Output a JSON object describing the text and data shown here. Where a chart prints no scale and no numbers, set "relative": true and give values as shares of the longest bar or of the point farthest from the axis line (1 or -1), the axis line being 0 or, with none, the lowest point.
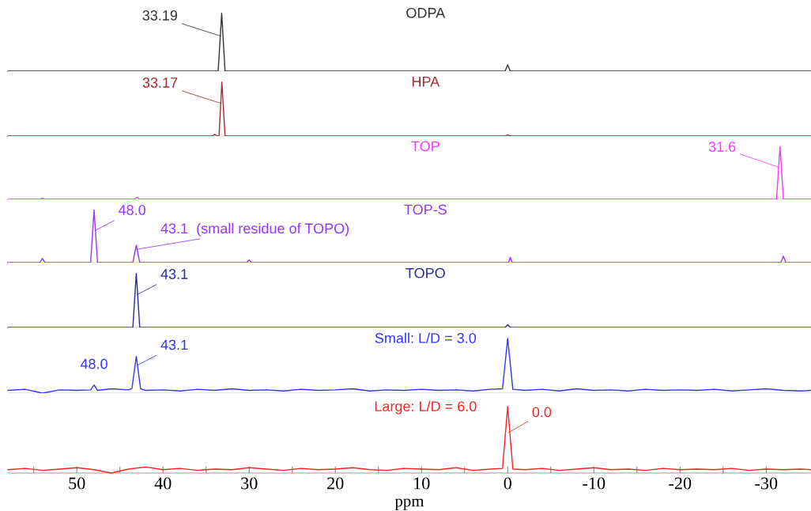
{
  "chart_data": [
    {
      "type": "line",
      "title": "ODPA",
      "relative": true,
      "xlim": [
        58,
        -35.2
      ],
      "tick_labels": false,
      "series": [
        {
          "color": "#333333",
          "x": [
            58,
            33.6,
            33.19,
            32.8,
            0.3,
            0,
            -0.3,
            -35.2
          ],
          "values": [
            0,
            0,
            1,
            0,
            0,
            0.11,
            0,
            0
          ]
        }
      ],
      "annotations": [
        {
          "text": "33.19",
          "x": 33.19,
          "y": 0.6
        }
      ]
    },
    {
      "type": "line",
      "title": "HPA",
      "relative": true,
      "xlim": [
        58,
        -35.2
      ],
      "tick_labels": false,
      "series": [
        {
          "color": "#a52a2a",
          "x": [
            58,
            34.3,
            34,
            33.7,
            33.5,
            33.17,
            32.8,
            0.3,
            0,
            -0.3,
            -35.2
          ],
          "values": [
            0,
            0,
            0.03,
            0,
            0,
            1,
            0,
            0,
            0.02,
            0,
            0
          ]
        }
      ],
      "annotations": [
        {
          "text": "33.17",
          "x": 33.17,
          "y": 0.6
        }
      ]
    },
    {
      "type": "line",
      "title": "TOP",
      "relative": true,
      "xlim": [
        58,
        -35.2
      ],
      "tick_labels": false,
      "series": [
        {
          "color": "#ff33ff",
          "x": [
            58,
            54.3,
            54,
            53.7,
            43.3,
            43,
            42.7,
            -31.2,
            -31.6,
            -32,
            -35.2
          ],
          "values": [
            0,
            0,
            0.02,
            0,
            0,
            0.04,
            0,
            0,
            1,
            0,
            0
          ]
        }
      ],
      "annotations": [
        {
          "text": "31.6",
          "x": -31.6,
          "y": 0.6
        }
      ]
    },
    {
      "type": "line",
      "title": "TOP-S",
      "relative": true,
      "xlim": [
        58,
        -35.2
      ],
      "tick_labels": false,
      "series": [
        {
          "color": "#9933ff",
          "x": [
            58,
            54.3,
            54,
            53.7,
            48.4,
            48.0,
            47.6,
            43.5,
            43.1,
            42.7,
            30.3,
            30,
            29.7,
            -0.1,
            -0.3,
            -0.5,
            -31.7,
            -32,
            -32.3,
            -35.2
          ],
          "values": [
            0,
            0,
            0.08,
            0,
            0,
            1,
            0,
            0,
            0.33,
            0,
            0,
            0.05,
            0,
            0,
            0.1,
            0,
            0,
            0.12,
            0,
            0
          ]
        }
      ],
      "annotations": [
        {
          "text": "48.0",
          "x": 48.0,
          "y": 0.6
        },
        {
          "text": "43.1  (small residue of TOPO)",
          "x": 43.1,
          "y": 0.25
        }
      ]
    },
    {
      "type": "line",
      "title": "TOPO",
      "relative": true,
      "xlim": [
        58,
        -35.2
      ],
      "tick_labels": false,
      "series": [
        {
          "color": "#2a2a99",
          "x": [
            58,
            43.5,
            43.1,
            42.7,
            0.3,
            0,
            -0.3,
            -35.2
          ],
          "values": [
            0,
            0,
            1,
            0,
            0,
            0.05,
            0,
            0
          ]
        }
      ],
      "annotations": [
        {
          "text": "43.1",
          "x": 43.1,
          "y": 0.6
        }
      ]
    },
    {
      "type": "line",
      "title": "Small: L/D = 3.0",
      "relative": true,
      "xlim": [
        58,
        -35.2
      ],
      "tick_labels": false,
      "series": [
        {
          "color": "#3333ff",
          "x": [
            58,
            56,
            54,
            52,
            50,
            48.4,
            48,
            47.6,
            46,
            44,
            43.6,
            43.1,
            42.6,
            42,
            40,
            38,
            36,
            34,
            32,
            30,
            28,
            26,
            24,
            22,
            20,
            18,
            16,
            14,
            12,
            10,
            8,
            6,
            4,
            2,
            0.6,
            0,
            -0.6,
            -2,
            -4,
            -6,
            -8,
            -10,
            -12,
            -14,
            -16,
            -18,
            -20,
            -22,
            -24,
            -26,
            -28,
            -30,
            -32,
            -34,
            -35.2
          ],
          "values": [
            0.05,
            0.07,
            0,
            0.06,
            0.05,
            0.06,
            0.15,
            0.05,
            0.08,
            0.06,
            0.09,
            0.67,
            0.08,
            0.05,
            0.06,
            0.04,
            0.07,
            0.05,
            0.08,
            0.05,
            0.06,
            0.04,
            0.07,
            0.05,
            0.06,
            0.08,
            0.04,
            0.06,
            0.05,
            0.07,
            0.05,
            0.06,
            0.04,
            0.07,
            0.08,
            1,
            0.07,
            0.05,
            0.07,
            0.04,
            0.08,
            0.05,
            0.06,
            0.04,
            0.07,
            0.05,
            0.06,
            0.05,
            0.07,
            0.04,
            0.06,
            0.08,
            0.05,
            0.04,
            0.05
          ]
        }
      ],
      "annotations": [
        {
          "text": "48.0",
          "x": 48.0,
          "y": 0.15
        },
        {
          "text": "43.1",
          "x": 43.1,
          "y": 0.5
        }
      ]
    },
    {
      "type": "line",
      "title": "Large: L/D = 6.0",
      "relative": true,
      "xlim": [
        58,
        -35.2
      ],
      "xlabel": "ppm",
      "xticks": [
        {
          "value": 55,
          "label": null
        },
        50,
        {
          "value": 45,
          "label": null
        },
        40,
        {
          "value": 35,
          "label": null
        },
        30,
        {
          "value": 25,
          "label": null
        },
        20,
        {
          "value": 15,
          "label": null
        },
        10,
        {
          "value": 5,
          "label": null
        },
        0,
        {
          "value": -5,
          "label": null
        },
        -10,
        {
          "value": -15,
          "label": null
        },
        -20,
        {
          "value": -25,
          "label": null
        },
        -30
      ],
      "tick_labels": "x",
      "series": [
        {
          "color": "#ff2020",
          "x": [
            58,
            56,
            54,
            52,
            50,
            48,
            46,
            44,
            42,
            40,
            38,
            36,
            34,
            32,
            30,
            28,
            26,
            24,
            22,
            20,
            18,
            16,
            14,
            12,
            10,
            8,
            6,
            4,
            2,
            0.6,
            0,
            -0.6,
            -2,
            -4,
            -6,
            -8,
            -10,
            -12,
            -14,
            -16,
            -18,
            -20,
            -22,
            -24,
            -26,
            -28,
            -30,
            -32,
            -34,
            -35.2
          ],
          "values": [
            0.05,
            0.07,
            0.04,
            0.06,
            0.08,
            0.05,
            0,
            0.06,
            0.09,
            0.05,
            0.07,
            0.04,
            0.06,
            0.05,
            0.08,
            0.06,
            0.04,
            0.07,
            0.05,
            0.06,
            0.08,
            0.05,
            0.04,
            0.07,
            0.06,
            0.05,
            0.08,
            0.04,
            0.06,
            0.07,
            1,
            0.06,
            0.05,
            0.07,
            0.04,
            0.06,
            0.08,
            0.05,
            0.06,
            0.04,
            0.07,
            0.05,
            0.06,
            0.05,
            0.07,
            0.04,
            0.06,
            0.05,
            0.06,
            0.05
          ]
        }
      ],
      "annotations": [
        {
          "text": "0.0",
          "x": 0,
          "y": 0.6
        }
      ]
    }
  ]
}
